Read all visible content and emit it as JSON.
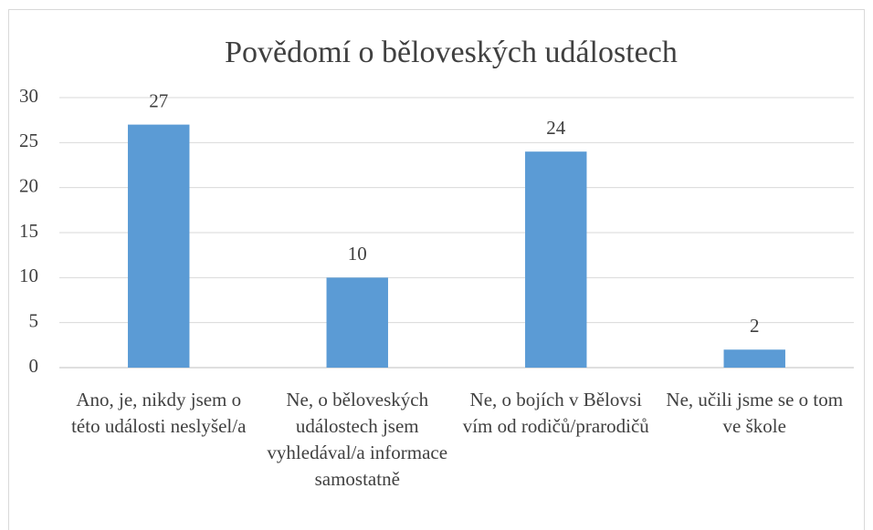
{
  "chart_data": {
    "type": "bar",
    "title": "Povědomí o běloveských událostech",
    "categories": [
      "Ano, je, nikdy jsem o této události neslyšel/a",
      "Ne, o běloveských událostech jsem vyhledával/a informace samostatně",
      "Ne, o bojích v Bělovsi vím od rodičů/prarodičů",
      "Ne, učili jsme se o tom ve škole"
    ],
    "values": [
      27,
      10,
      24,
      2
    ],
    "color": "#5b9bd5",
    "ylim": [
      0,
      30
    ],
    "yticks": [
      0,
      5,
      10,
      15,
      20,
      25,
      30
    ],
    "grid": true
  }
}
